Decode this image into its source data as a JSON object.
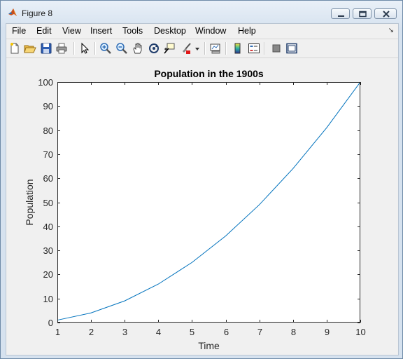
{
  "window": {
    "title": "Figure 8"
  },
  "menu": [
    "File",
    "Edit",
    "View",
    "Insert",
    "Tools",
    "Desktop",
    "Window",
    "Help"
  ],
  "menu_overflow_icon": "menu-overflow-arrow-icon",
  "toolbar": [
    {
      "name": "new-figure-icon"
    },
    {
      "name": "open-file-icon"
    },
    {
      "name": "save-icon"
    },
    {
      "name": "print-icon"
    },
    {
      "name": "edit-plot-cursor-icon"
    },
    {
      "name": "zoom-in-icon"
    },
    {
      "name": "zoom-out-icon"
    },
    {
      "name": "pan-hand-icon"
    },
    {
      "name": "rotate-3d-icon"
    },
    {
      "name": "data-cursor-icon"
    },
    {
      "name": "brush-icon"
    },
    {
      "name": "brush-dropdown-icon"
    },
    {
      "name": "link-plot-icon"
    },
    {
      "name": "insert-colorbar-icon"
    },
    {
      "name": "insert-legend-icon"
    },
    {
      "name": "hide-plot-tools-icon"
    },
    {
      "name": "show-plot-tools-icon"
    }
  ],
  "colors": {
    "line": "#0072BD",
    "axes_bg": "#ffffff",
    "figure_bg": "#f0f0f0"
  },
  "chart_data": {
    "type": "line",
    "title": "Population in the 1900s",
    "xlabel": "Time",
    "ylabel": "Population",
    "xlim": [
      1,
      10
    ],
    "ylim": [
      0,
      100
    ],
    "xticks": [
      1,
      2,
      3,
      4,
      5,
      6,
      7,
      8,
      9,
      10
    ],
    "yticks": [
      0,
      10,
      20,
      30,
      40,
      50,
      60,
      70,
      80,
      90,
      100
    ],
    "grid": false,
    "series": [
      {
        "x": [
          1,
          2,
          3,
          4,
          5,
          6,
          7,
          8,
          9,
          10
        ],
        "values": [
          1,
          4,
          9,
          16,
          25,
          36,
          49,
          64,
          81,
          100
        ]
      }
    ]
  }
}
